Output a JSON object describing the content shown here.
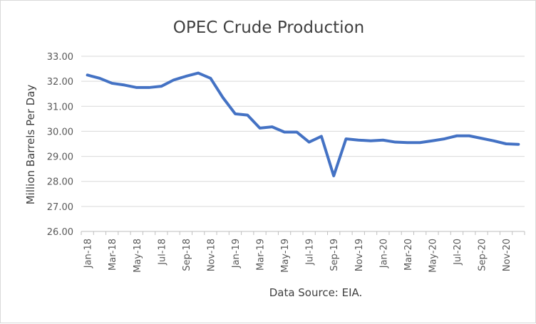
{
  "chart_data": {
    "type": "line",
    "title": "OPEC Crude Production",
    "ylabel": "Million Barrels Per Day",
    "xlabel": "",
    "source_note": "Data Source: EIA.",
    "ylim": [
      26.0,
      33.0
    ],
    "y_ticks": [
      "26.00",
      "27.00",
      "28.00",
      "29.00",
      "30.00",
      "31.00",
      "32.00",
      "33.00"
    ],
    "grid": "horizontal",
    "legend": "none",
    "x_tick_labels": [
      "Jan-18",
      "Mar-18",
      "May-18",
      "Jul-18",
      "Sep-18",
      "Nov-18",
      "Jan-19",
      "Mar-19",
      "May-19",
      "Jul-19",
      "Sep-19",
      "Nov-19",
      "Jan-20",
      "Mar-20",
      "May-20",
      "Jul-20",
      "Sep-20",
      "Nov-20"
    ],
    "x": [
      "Jan-18",
      "Feb-18",
      "Mar-18",
      "Apr-18",
      "May-18",
      "Jun-18",
      "Jul-18",
      "Aug-18",
      "Sep-18",
      "Oct-18",
      "Nov-18",
      "Dec-18",
      "Jan-19",
      "Feb-19",
      "Mar-19",
      "Apr-19",
      "May-19",
      "Jun-19",
      "Jul-19",
      "Aug-19",
      "Sep-19",
      "Oct-19",
      "Nov-19",
      "Dec-19",
      "Jan-20",
      "Feb-20",
      "Mar-20",
      "Apr-20",
      "May-20",
      "Jun-20",
      "Jul-20",
      "Aug-20",
      "Sep-20",
      "Oct-20",
      "Nov-20",
      "Dec-20"
    ],
    "series": [
      {
        "values": [
          32.25,
          32.12,
          31.92,
          31.85,
          31.75,
          31.75,
          31.8,
          32.05,
          32.2,
          32.33,
          32.12,
          31.35,
          30.7,
          30.65,
          30.13,
          30.18,
          29.97,
          29.97,
          29.57,
          29.8,
          28.22,
          29.7,
          29.65,
          29.62,
          29.65,
          29.57,
          29.55,
          29.55,
          29.62,
          29.7,
          29.82,
          29.82,
          29.72,
          29.62,
          29.5,
          29.48
        ],
        "color": "#4472c4"
      }
    ],
    "colors": {
      "line": "#4472c4",
      "grid": "#d9d9d9",
      "axis": "#bfbfbf",
      "text": "#595959"
    }
  }
}
